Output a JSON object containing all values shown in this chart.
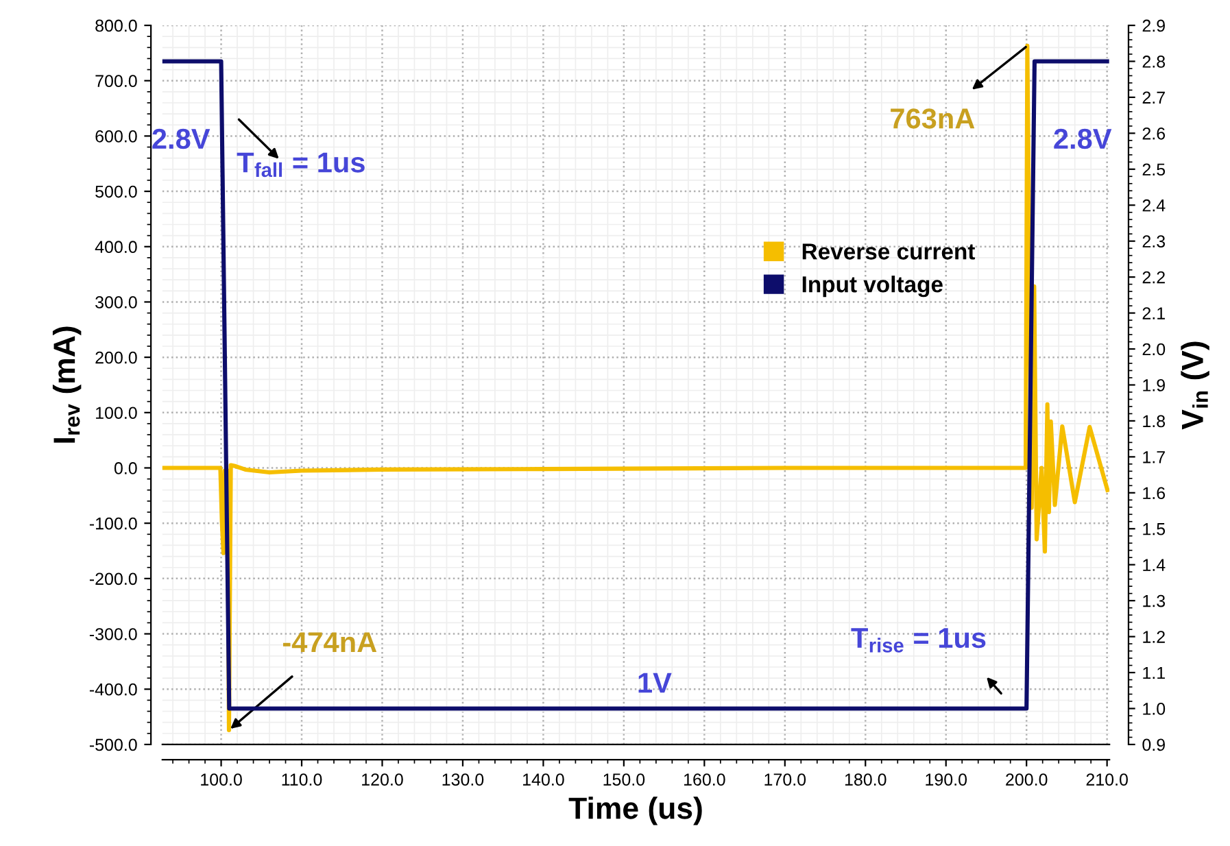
{
  "chart_data": {
    "type": "line",
    "xlabel": "Time (us)",
    "ylabel": "I$_{rev}$ (mA)",
    "y2label": "V$_{in}$ (V)",
    "xlim": [
      92.7,
      210.3
    ],
    "xticks": [
      {
        "value": 100,
        "label": "100.0"
      },
      {
        "value": 110,
        "label": "110.0"
      },
      {
        "value": 120,
        "label": "120.0"
      },
      {
        "value": 130,
        "label": "130.0"
      },
      {
        "value": 140,
        "label": "140.0"
      },
      {
        "value": 150,
        "label": "150.0"
      },
      {
        "value": 160,
        "label": "160.0"
      },
      {
        "value": 170,
        "label": "170.0"
      },
      {
        "value": 180,
        "label": "180.0"
      },
      {
        "value": 190,
        "label": "190.0"
      },
      {
        "value": 200,
        "label": "200.0"
      },
      {
        "value": 210,
        "label": "210.0"
      }
    ],
    "ylim": [
      -500,
      800
    ],
    "yticks": [
      {
        "value": -500,
        "label": "-500.0"
      },
      {
        "value": -400,
        "label": "-400.0"
      },
      {
        "value": -300,
        "label": "-300.0"
      },
      {
        "value": -200,
        "label": "-200.0"
      },
      {
        "value": -100,
        "label": "-100.0"
      },
      {
        "value": 0,
        "label": "0.0"
      },
      {
        "value": 100,
        "label": "100.0"
      },
      {
        "value": 200,
        "label": "200.0"
      },
      {
        "value": 300,
        "label": "300.0"
      },
      {
        "value": 400,
        "label": "400.0"
      },
      {
        "value": 500,
        "label": "500.0"
      },
      {
        "value": 600,
        "label": "600.0"
      },
      {
        "value": 700,
        "label": "700.0"
      },
      {
        "value": 800,
        "label": "800.0"
      }
    ],
    "y2lim": [
      0.9,
      2.9
    ],
    "y2ticks": [
      {
        "value": 0.9,
        "label": "0.9"
      },
      {
        "value": 1.0,
        "label": "1.0"
      },
      {
        "value": 1.1,
        "label": "1.1"
      },
      {
        "value": 1.2,
        "label": "1.2"
      },
      {
        "value": 1.3,
        "label": "1.3"
      },
      {
        "value": 1.4,
        "label": "1.4"
      },
      {
        "value": 1.5,
        "label": "1.5"
      },
      {
        "value": 1.6,
        "label": "1.6"
      },
      {
        "value": 1.7,
        "label": "1.7"
      },
      {
        "value": 1.8,
        "label": "1.8"
      },
      {
        "value": 1.9,
        "label": "1.9"
      },
      {
        "value": 2.0,
        "label": "2.0"
      },
      {
        "value": 2.1,
        "label": "2.1"
      },
      {
        "value": 2.2,
        "label": "2.2"
      },
      {
        "value": 2.3,
        "label": "2.3"
      },
      {
        "value": 2.4,
        "label": "2.4"
      },
      {
        "value": 2.5,
        "label": "2.5"
      },
      {
        "value": 2.6,
        "label": "2.6"
      },
      {
        "value": 2.7,
        "label": "2.7"
      },
      {
        "value": 2.8,
        "label": "2.8"
      },
      {
        "value": 2.9,
        "label": "2.9"
      }
    ],
    "grid": true,
    "legend": "right",
    "marker": "none",
    "line_style": "solid",
    "series": [
      {
        "name": "Reverse current",
        "color": "#f5be00",
        "x": [
          92.7,
          99.9,
          100.1,
          100.29,
          100.45,
          100.8,
          100.97,
          101.2,
          101.8,
          103,
          106,
          110,
          120,
          140,
          170,
          199.9,
          200.1,
          200.64,
          200.95,
          201.26,
          201.87,
          202.28,
          202.59,
          202.78,
          203.02,
          203.52,
          204.44,
          206.0,
          207.84,
          210.05
        ],
        "values": [
          0,
          0,
          -100,
          -154,
          -5,
          -5,
          -474,
          5,
          3,
          -3,
          -8,
          -5,
          -3,
          -2,
          0,
          0,
          763,
          -72,
          328,
          -129,
          0,
          -151,
          115,
          -80,
          84,
          -67,
          75,
          -62,
          74,
          -40
        ]
      },
      {
        "name": "Input voltage",
        "color": "#0d0d6b",
        "axis": "y2",
        "x": [
          92.7,
          100.0,
          101.0,
          200.0,
          201.0,
          210.0
        ],
        "values": [
          2.8,
          2.8,
          1.0,
          1.0,
          2.8,
          2.8
        ]
      }
    ],
    "annotations": [
      "2.8V",
      "T$_{fall}$ = 1us",
      {
        "text": "-474nA",
        "x": 100.97,
        "y": -474
      },
      "1V",
      {
        "text": "763nA",
        "x": 200.1,
        "y": 763
      },
      "2.8V",
      "T$_{rise}$ = 1us"
    ]
  }
}
